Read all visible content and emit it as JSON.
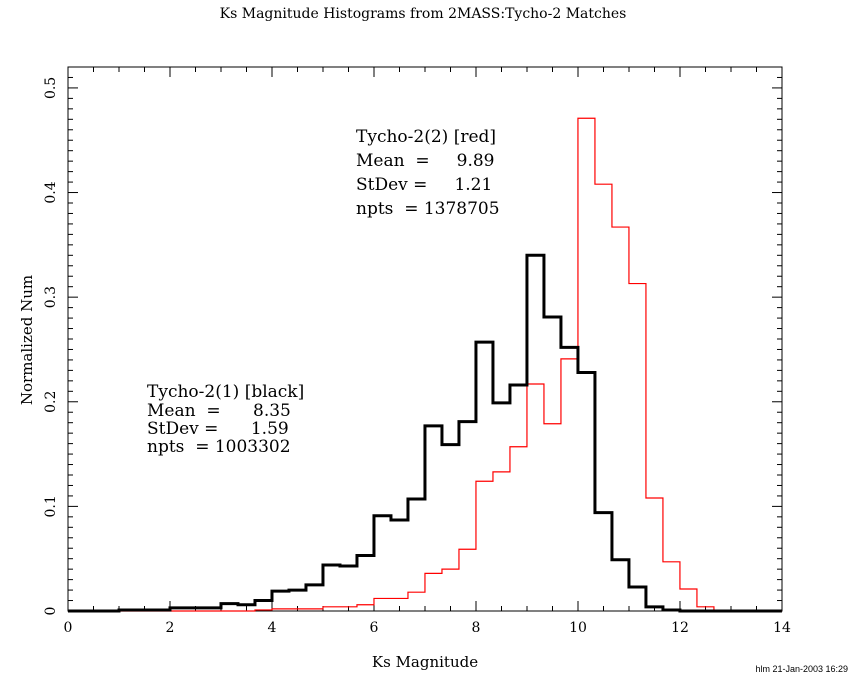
{
  "chart_data": {
    "type": "bar",
    "histogram": true,
    "title": "Ks Magnitude Histograms from 2MASS:Tycho-2 Matches",
    "xlabel": "Ks Magnitude",
    "ylabel": "Normalized Num",
    "xlim": [
      0,
      14
    ],
    "ylim": [
      0,
      0.52
    ],
    "bin_width": 0.3333,
    "x_ticks": [
      "0",
      "2",
      "4",
      "6",
      "8",
      "10",
      "12",
      "14"
    ],
    "y_ticks": [
      "0",
      "0.1",
      "0.2",
      "0.3",
      "0.4",
      "0.5"
    ],
    "series": [
      {
        "name": "Tycho-2(1) [black]",
        "color": "#000000",
        "values": [
          0,
          0,
          0,
          0.001,
          0.001,
          0.001,
          0.003,
          0.003,
          0.003,
          0.007,
          0.006,
          0.01,
          0.019,
          0.02,
          0.025,
          0.044,
          0.043,
          0.053,
          0.091,
          0.087,
          0.107,
          0.177,
          0.159,
          0.181,
          0.257,
          0.199,
          0.216,
          0.34,
          0.281,
          0.252,
          0.228,
          0.094,
          0.049,
          0.023,
          0.004,
          0.001,
          0,
          0,
          0,
          0,
          0,
          0
        ]
      },
      {
        "name": "Tycho-2(2) [red]",
        "color": "#ff0000",
        "values": [
          0,
          0,
          0,
          0,
          0,
          0,
          0,
          0,
          0,
          0,
          0,
          0.001,
          0.002,
          0.002,
          0.002,
          0.004,
          0.004,
          0.006,
          0.012,
          0.012,
          0.018,
          0.036,
          0.04,
          0.059,
          0.124,
          0.133,
          0.157,
          0.217,
          0.179,
          0.241,
          0.471,
          0.408,
          0.367,
          0.313,
          0.108,
          0.047,
          0.021,
          0.004,
          0,
          0,
          0,
          0
        ]
      }
    ],
    "annotations": {
      "red": [
        "Tycho-2(2) [red]",
        "Mean  =     9.89",
        "StDev =     1.21",
        "npts  = 1378705"
      ],
      "black": [
        "Tycho-2(1) [black]",
        "Mean  =      8.35",
        "StDev =      1.59",
        "npts  = 1003302"
      ]
    },
    "footer": "hlm 21-Jan-2003 16:29"
  }
}
